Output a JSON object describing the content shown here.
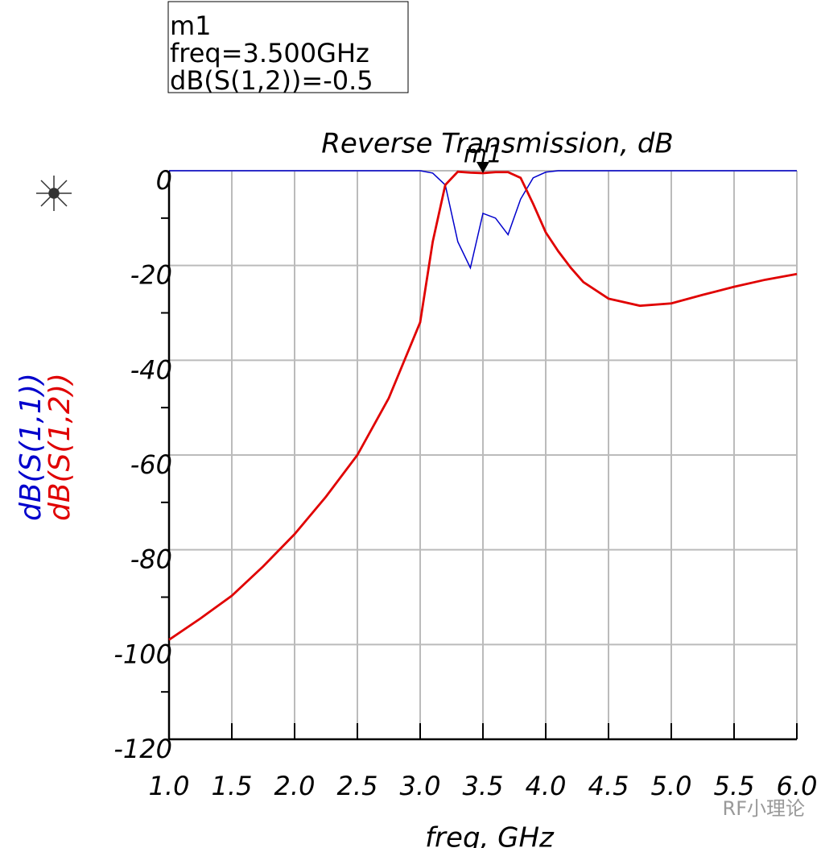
{
  "chart_data": {
    "type": "line",
    "title": "Reverse Transmission, dB",
    "x_label": "freq, GHz",
    "x": [
      1.0,
      1.25,
      1.5,
      1.75,
      2.0,
      2.25,
      2.5,
      2.75,
      3.0,
      3.1,
      3.2,
      3.3,
      3.4,
      3.5,
      3.6,
      3.7,
      3.8,
      3.9,
      4.0,
      4.1,
      4.2,
      4.3,
      4.5,
      4.75,
      5.0,
      5.25,
      5.5,
      5.75,
      6.0
    ],
    "series": [
      {
        "name": "dB(S(1,1))",
        "color": "#0000cc",
        "values": [
          0,
          0,
          0,
          0,
          0,
          0,
          0,
          0,
          0,
          -0.5,
          -3,
          -15,
          -20.5,
          -9,
          -10,
          -13.5,
          -6,
          -1.5,
          -0.3,
          0,
          0,
          0,
          0,
          0,
          0,
          0,
          0,
          0,
          0
        ]
      },
      {
        "name": "dB(S(1,2))",
        "color": "#e00000",
        "values": [
          -99,
          -94.5,
          -89.7,
          -83.5,
          -76.7,
          -68.8,
          -60,
          -48,
          -32,
          -15,
          -3,
          -0.2,
          -0.4,
          -0.5,
          -0.3,
          -0.3,
          -1.5,
          -7,
          -13,
          -17,
          -20.5,
          -23.5,
          -27,
          -28.5,
          -28,
          -26.2,
          -24.5,
          -23,
          -21.8
        ]
      }
    ],
    "xlim": [
      1.0,
      6.0
    ],
    "xticks": [
      {
        "value": 1.0,
        "label": "1.0"
      },
      1.5,
      {
        "value": 2.0,
        "label": "2.0"
      },
      2.5,
      {
        "value": 3.0,
        "label": "3.0"
      },
      3.5,
      {
        "value": 4.0,
        "label": "4.0"
      },
      4.5,
      {
        "value": 5.0,
        "label": "5.0"
      },
      5.5,
      {
        "value": 6.0,
        "label": "6.0"
      }
    ],
    "ylim": [
      -120,
      0
    ],
    "yticks": [
      0,
      -20,
      -40,
      -60,
      -80,
      -100,
      -120
    ],
    "y_minor_ticks": [
      -10,
      -30,
      -50,
      -70,
      -90,
      -110
    ],
    "grid": true,
    "marker": {
      "name": "m1",
      "x": 3.5,
      "value": -0.5,
      "readout": [
        "m1",
        "freq=3.500GHz",
        "dB(S(1,2))=-0.5"
      ]
    },
    "watermark": "RF小理论"
  }
}
